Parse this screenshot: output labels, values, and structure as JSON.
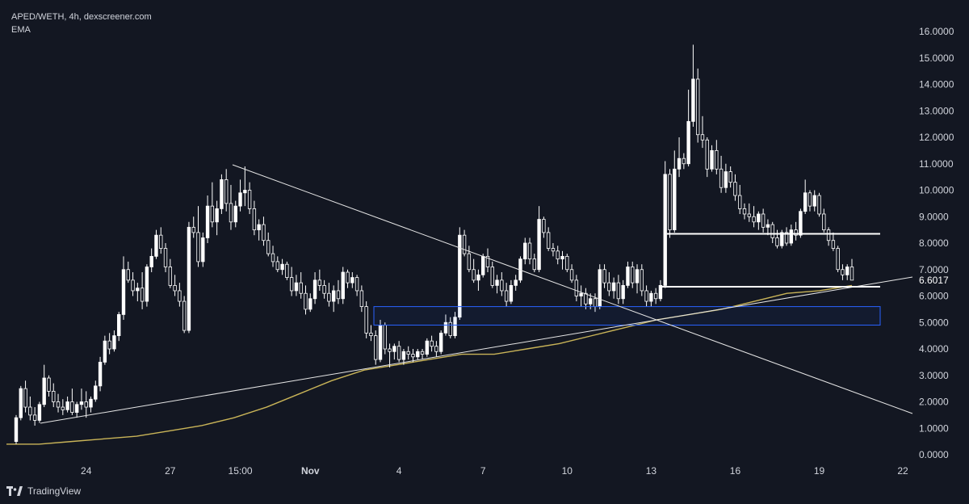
{
  "header": {
    "symbol_line": "APED/WETH, 4h, dexscreener.com",
    "indicator": "EMA"
  },
  "footer": {
    "brand": "TradingView"
  },
  "colors": {
    "background": "#131722",
    "candle_up": "#ffffff",
    "candle_down": "#131722",
    "candle_border": "#ffffff",
    "ema": "#c9b458",
    "trendline": "#e6e6e6",
    "zone_border": "#2962ff",
    "level": "#ffffff"
  },
  "chart_data": {
    "type": "candlestick",
    "interval": "4h",
    "x_ticks": [
      "24",
      "27",
      "15:00",
      "Nov",
      "4",
      "7",
      "10",
      "13",
      "16",
      "19",
      "22"
    ],
    "y_ticks": [
      "16.0000",
      "15.0000",
      "14.0000",
      "13.0000",
      "12.0000",
      "11.0000",
      "10.0000",
      "9.0000",
      "8.0000",
      "7.0000",
      "6.0000",
      "5.0000",
      "4.0000",
      "3.0000",
      "2.0000",
      "1.0000",
      "0.0000"
    ],
    "ylim": [
      0,
      16
    ],
    "last_price": "6.6017",
    "candles": [
      {
        "o": 0.5,
        "h": 1.5,
        "l": 0.4,
        "c": 1.4
      },
      {
        "o": 1.4,
        "h": 2.6,
        "l": 1.3,
        "c": 2.5
      },
      {
        "o": 2.5,
        "h": 2.8,
        "l": 1.6,
        "c": 1.8
      },
      {
        "o": 1.8,
        "h": 2.2,
        "l": 1.3,
        "c": 1.5
      },
      {
        "o": 1.5,
        "h": 1.8,
        "l": 1.1,
        "c": 1.3
      },
      {
        "o": 1.3,
        "h": 2.0,
        "l": 1.2,
        "c": 1.9
      },
      {
        "o": 1.9,
        "h": 3.4,
        "l": 1.8,
        "c": 2.9
      },
      {
        "o": 2.9,
        "h": 3.0,
        "l": 2.2,
        "c": 2.4
      },
      {
        "o": 2.4,
        "h": 2.7,
        "l": 1.8,
        "c": 2.0
      },
      {
        "o": 2.0,
        "h": 2.3,
        "l": 1.6,
        "c": 1.8
      },
      {
        "o": 1.8,
        "h": 2.1,
        "l": 1.5,
        "c": 1.7
      },
      {
        "o": 1.7,
        "h": 2.2,
        "l": 1.6,
        "c": 2.0
      },
      {
        "o": 2.0,
        "h": 2.5,
        "l": 1.5,
        "c": 1.6
      },
      {
        "o": 1.6,
        "h": 2.0,
        "l": 1.4,
        "c": 1.9
      },
      {
        "o": 1.9,
        "h": 2.5,
        "l": 1.7,
        "c": 2.0
      },
      {
        "o": 2.0,
        "h": 2.4,
        "l": 1.4,
        "c": 1.8
      },
      {
        "o": 1.8,
        "h": 2.2,
        "l": 1.6,
        "c": 2.1
      },
      {
        "o": 2.1,
        "h": 2.8,
        "l": 2.0,
        "c": 2.6
      },
      {
        "o": 2.6,
        "h": 3.7,
        "l": 2.4,
        "c": 3.5
      },
      {
        "o": 3.5,
        "h": 4.5,
        "l": 3.4,
        "c": 4.3
      },
      {
        "o": 4.3,
        "h": 4.6,
        "l": 3.8,
        "c": 4.0
      },
      {
        "o": 4.0,
        "h": 4.7,
        "l": 3.9,
        "c": 4.5
      },
      {
        "o": 4.5,
        "h": 5.4,
        "l": 4.3,
        "c": 5.3
      },
      {
        "o": 5.3,
        "h": 7.5,
        "l": 5.1,
        "c": 7.0
      },
      {
        "o": 7.0,
        "h": 7.3,
        "l": 6.5,
        "c": 6.6
      },
      {
        "o": 6.6,
        "h": 6.9,
        "l": 6.0,
        "c": 6.2
      },
      {
        "o": 6.2,
        "h": 6.5,
        "l": 5.8,
        "c": 6.3
      },
      {
        "o": 6.3,
        "h": 6.9,
        "l": 5.5,
        "c": 5.8
      },
      {
        "o": 5.8,
        "h": 7.2,
        "l": 5.6,
        "c": 7.1
      },
      {
        "o": 7.1,
        "h": 7.8,
        "l": 6.9,
        "c": 7.5
      },
      {
        "o": 7.5,
        "h": 8.5,
        "l": 7.4,
        "c": 8.3
      },
      {
        "o": 8.3,
        "h": 8.6,
        "l": 7.6,
        "c": 7.8
      },
      {
        "o": 7.8,
        "h": 8.0,
        "l": 6.9,
        "c": 7.1
      },
      {
        "o": 7.1,
        "h": 7.4,
        "l": 6.3,
        "c": 6.4
      },
      {
        "o": 6.4,
        "h": 6.8,
        "l": 6.0,
        "c": 6.2
      },
      {
        "o": 6.2,
        "h": 6.5,
        "l": 5.6,
        "c": 5.8
      },
      {
        "o": 5.8,
        "h": 6.0,
        "l": 4.6,
        "c": 4.7
      },
      {
        "o": 4.7,
        "h": 8.8,
        "l": 4.6,
        "c": 8.6
      },
      {
        "o": 8.6,
        "h": 9.0,
        "l": 8.2,
        "c": 8.4
      },
      {
        "o": 8.4,
        "h": 9.4,
        "l": 7.1,
        "c": 7.3
      },
      {
        "o": 7.3,
        "h": 8.4,
        "l": 7.1,
        "c": 8.2
      },
      {
        "o": 8.2,
        "h": 9.8,
        "l": 8.0,
        "c": 9.4
      },
      {
        "o": 9.4,
        "h": 10.3,
        "l": 8.6,
        "c": 8.8
      },
      {
        "o": 8.8,
        "h": 9.6,
        "l": 8.3,
        "c": 9.3
      },
      {
        "o": 9.3,
        "h": 10.6,
        "l": 9.1,
        "c": 10.4
      },
      {
        "o": 10.4,
        "h": 10.8,
        "l": 9.2,
        "c": 9.5
      },
      {
        "o": 9.5,
        "h": 10.2,
        "l": 8.5,
        "c": 8.8
      },
      {
        "o": 8.8,
        "h": 9.6,
        "l": 8.6,
        "c": 9.4
      },
      {
        "o": 9.4,
        "h": 10.4,
        "l": 9.2,
        "c": 9.9
      },
      {
        "o": 9.9,
        "h": 10.9,
        "l": 9.4,
        "c": 10.0
      },
      {
        "o": 10.0,
        "h": 10.3,
        "l": 9.1,
        "c": 9.3
      },
      {
        "o": 9.3,
        "h": 9.6,
        "l": 8.3,
        "c": 8.5
      },
      {
        "o": 8.5,
        "h": 8.9,
        "l": 8.1,
        "c": 8.7
      },
      {
        "o": 8.7,
        "h": 9.0,
        "l": 7.9,
        "c": 8.1
      },
      {
        "o": 8.1,
        "h": 8.4,
        "l": 7.5,
        "c": 7.6
      },
      {
        "o": 7.6,
        "h": 7.9,
        "l": 7.1,
        "c": 7.3
      },
      {
        "o": 7.3,
        "h": 7.5,
        "l": 6.9,
        "c": 7.0
      },
      {
        "o": 7.0,
        "h": 7.4,
        "l": 6.8,
        "c": 7.2
      },
      {
        "o": 7.2,
        "h": 7.3,
        "l": 6.6,
        "c": 6.7
      },
      {
        "o": 6.7,
        "h": 7.1,
        "l": 6.0,
        "c": 6.2
      },
      {
        "o": 6.2,
        "h": 6.8,
        "l": 6.0,
        "c": 6.5
      },
      {
        "o": 6.5,
        "h": 6.9,
        "l": 5.9,
        "c": 6.1
      },
      {
        "o": 6.1,
        "h": 6.4,
        "l": 5.3,
        "c": 5.5
      },
      {
        "o": 5.5,
        "h": 6.1,
        "l": 5.4,
        "c": 5.9
      },
      {
        "o": 5.9,
        "h": 6.9,
        "l": 5.7,
        "c": 6.6
      },
      {
        "o": 6.6,
        "h": 7.0,
        "l": 6.2,
        "c": 6.4
      },
      {
        "o": 6.4,
        "h": 6.6,
        "l": 5.9,
        "c": 6.1
      },
      {
        "o": 6.1,
        "h": 6.5,
        "l": 5.6,
        "c": 5.8
      },
      {
        "o": 5.8,
        "h": 6.4,
        "l": 5.4,
        "c": 6.2
      },
      {
        "o": 6.2,
        "h": 6.6,
        "l": 5.7,
        "c": 5.9
      },
      {
        "o": 5.9,
        "h": 7.1,
        "l": 5.7,
        "c": 6.9
      },
      {
        "o": 6.9,
        "h": 7.0,
        "l": 6.3,
        "c": 6.5
      },
      {
        "o": 6.5,
        "h": 6.9,
        "l": 6.3,
        "c": 6.7
      },
      {
        "o": 6.7,
        "h": 6.8,
        "l": 6.0,
        "c": 6.2
      },
      {
        "o": 6.2,
        "h": 6.4,
        "l": 5.4,
        "c": 5.6
      },
      {
        "o": 5.6,
        "h": 5.8,
        "l": 4.4,
        "c": 4.6
      },
      {
        "o": 4.6,
        "h": 4.9,
        "l": 4.3,
        "c": 4.5
      },
      {
        "o": 4.5,
        "h": 4.7,
        "l": 3.4,
        "c": 3.6
      },
      {
        "o": 3.6,
        "h": 5.1,
        "l": 3.5,
        "c": 4.9
      },
      {
        "o": 4.9,
        "h": 5.0,
        "l": 3.8,
        "c": 4.0
      },
      {
        "o": 4.0,
        "h": 4.2,
        "l": 3.3,
        "c": 3.9
      },
      {
        "o": 3.9,
        "h": 4.2,
        "l": 3.6,
        "c": 4.1
      },
      {
        "o": 4.1,
        "h": 4.3,
        "l": 3.5,
        "c": 3.6
      },
      {
        "o": 3.6,
        "h": 4.0,
        "l": 3.4,
        "c": 3.9
      },
      {
        "o": 3.9,
        "h": 4.1,
        "l": 3.6,
        "c": 3.8
      },
      {
        "o": 3.8,
        "h": 4.0,
        "l": 3.5,
        "c": 3.7
      },
      {
        "o": 3.7,
        "h": 4.0,
        "l": 3.6,
        "c": 3.9
      },
      {
        "o": 3.9,
        "h": 4.0,
        "l": 3.6,
        "c": 3.8
      },
      {
        "o": 3.8,
        "h": 4.4,
        "l": 3.7,
        "c": 4.3
      },
      {
        "o": 4.3,
        "h": 4.5,
        "l": 3.9,
        "c": 4.1
      },
      {
        "o": 4.1,
        "h": 4.3,
        "l": 3.7,
        "c": 3.9
      },
      {
        "o": 3.9,
        "h": 4.7,
        "l": 3.8,
        "c": 4.6
      },
      {
        "o": 4.6,
        "h": 5.3,
        "l": 4.5,
        "c": 5.0
      },
      {
        "o": 5.0,
        "h": 5.2,
        "l": 4.4,
        "c": 4.5
      },
      {
        "o": 4.5,
        "h": 5.4,
        "l": 4.4,
        "c": 5.2
      },
      {
        "o": 5.2,
        "h": 8.6,
        "l": 5.1,
        "c": 8.3
      },
      {
        "o": 8.3,
        "h": 8.5,
        "l": 7.5,
        "c": 7.6
      },
      {
        "o": 7.6,
        "h": 7.9,
        "l": 6.9,
        "c": 7.0
      },
      {
        "o": 7.0,
        "h": 7.4,
        "l": 6.5,
        "c": 6.6
      },
      {
        "o": 6.6,
        "h": 7.0,
        "l": 6.2,
        "c": 6.8
      },
      {
        "o": 6.8,
        "h": 7.6,
        "l": 6.7,
        "c": 7.5
      },
      {
        "o": 7.5,
        "h": 7.8,
        "l": 6.9,
        "c": 7.1
      },
      {
        "o": 7.1,
        "h": 7.3,
        "l": 6.3,
        "c": 6.4
      },
      {
        "o": 6.4,
        "h": 6.8,
        "l": 6.1,
        "c": 6.6
      },
      {
        "o": 6.6,
        "h": 6.9,
        "l": 6.0,
        "c": 6.2
      },
      {
        "o": 6.2,
        "h": 6.5,
        "l": 5.6,
        "c": 5.8
      },
      {
        "o": 5.8,
        "h": 6.6,
        "l": 5.7,
        "c": 6.4
      },
      {
        "o": 6.4,
        "h": 6.8,
        "l": 6.2,
        "c": 6.6
      },
      {
        "o": 6.6,
        "h": 7.5,
        "l": 6.5,
        "c": 7.4
      },
      {
        "o": 7.4,
        "h": 8.2,
        "l": 7.2,
        "c": 8.0
      },
      {
        "o": 8.0,
        "h": 8.2,
        "l": 7.2,
        "c": 7.4
      },
      {
        "o": 7.4,
        "h": 7.6,
        "l": 6.9,
        "c": 7.0
      },
      {
        "o": 7.0,
        "h": 9.4,
        "l": 6.9,
        "c": 8.9
      },
      {
        "o": 8.9,
        "h": 9.0,
        "l": 8.2,
        "c": 8.4
      },
      {
        "o": 8.4,
        "h": 8.6,
        "l": 7.7,
        "c": 7.8
      },
      {
        "o": 7.8,
        "h": 8.0,
        "l": 7.5,
        "c": 7.7
      },
      {
        "o": 7.7,
        "h": 7.9,
        "l": 7.2,
        "c": 7.4
      },
      {
        "o": 7.4,
        "h": 7.7,
        "l": 7.0,
        "c": 7.5
      },
      {
        "o": 7.5,
        "h": 7.6,
        "l": 6.9,
        "c": 7.0
      },
      {
        "o": 7.0,
        "h": 7.2,
        "l": 6.5,
        "c": 6.6
      },
      {
        "o": 6.6,
        "h": 6.8,
        "l": 5.8,
        "c": 6.0
      },
      {
        "o": 6.0,
        "h": 6.4,
        "l": 5.6,
        "c": 6.1
      },
      {
        "o": 6.1,
        "h": 6.3,
        "l": 5.5,
        "c": 5.7
      },
      {
        "o": 5.7,
        "h": 6.1,
        "l": 5.5,
        "c": 5.9
      },
      {
        "o": 5.9,
        "h": 6.1,
        "l": 5.4,
        "c": 5.6
      },
      {
        "o": 5.6,
        "h": 7.2,
        "l": 5.5,
        "c": 7.0
      },
      {
        "o": 7.0,
        "h": 7.2,
        "l": 6.3,
        "c": 6.5
      },
      {
        "o": 6.5,
        "h": 6.9,
        "l": 6.0,
        "c": 6.2
      },
      {
        "o": 6.2,
        "h": 6.7,
        "l": 5.9,
        "c": 6.5
      },
      {
        "o": 6.5,
        "h": 6.8,
        "l": 5.7,
        "c": 5.9
      },
      {
        "o": 5.9,
        "h": 6.6,
        "l": 5.7,
        "c": 6.4
      },
      {
        "o": 6.4,
        "h": 7.3,
        "l": 6.3,
        "c": 7.1
      },
      {
        "o": 7.1,
        "h": 7.3,
        "l": 6.3,
        "c": 6.5
      },
      {
        "o": 6.5,
        "h": 7.2,
        "l": 6.1,
        "c": 7.0
      },
      {
        "o": 7.0,
        "h": 7.2,
        "l": 6.0,
        "c": 6.2
      },
      {
        "o": 6.2,
        "h": 6.4,
        "l": 5.6,
        "c": 5.8
      },
      {
        "o": 5.8,
        "h": 6.2,
        "l": 5.6,
        "c": 6.1
      },
      {
        "o": 6.1,
        "h": 6.3,
        "l": 5.7,
        "c": 5.9
      },
      {
        "o": 5.9,
        "h": 6.6,
        "l": 5.8,
        "c": 6.4
      },
      {
        "o": 6.4,
        "h": 11.1,
        "l": 6.3,
        "c": 10.6
      },
      {
        "o": 10.6,
        "h": 10.8,
        "l": 8.2,
        "c": 8.5
      },
      {
        "o": 8.5,
        "h": 11.5,
        "l": 8.4,
        "c": 10.8
      },
      {
        "o": 10.8,
        "h": 12.0,
        "l": 10.5,
        "c": 11.2
      },
      {
        "o": 11.2,
        "h": 11.4,
        "l": 10.8,
        "c": 11.0
      },
      {
        "o": 11.0,
        "h": 13.8,
        "l": 10.9,
        "c": 12.6
      },
      {
        "o": 12.6,
        "h": 15.5,
        "l": 12.4,
        "c": 14.2
      },
      {
        "o": 14.2,
        "h": 14.6,
        "l": 11.8,
        "c": 12.1
      },
      {
        "o": 12.1,
        "h": 12.8,
        "l": 11.6,
        "c": 11.9
      },
      {
        "o": 11.9,
        "h": 12.0,
        "l": 10.5,
        "c": 10.8
      },
      {
        "o": 10.8,
        "h": 11.7,
        "l": 10.7,
        "c": 11.5
      },
      {
        "o": 11.5,
        "h": 11.9,
        "l": 10.6,
        "c": 10.8
      },
      {
        "o": 10.8,
        "h": 11.3,
        "l": 9.9,
        "c": 10.1
      },
      {
        "o": 10.1,
        "h": 11.0,
        "l": 9.9,
        "c": 10.7
      },
      {
        "o": 10.7,
        "h": 10.9,
        "l": 10.1,
        "c": 10.3
      },
      {
        "o": 10.3,
        "h": 10.6,
        "l": 9.6,
        "c": 9.8
      },
      {
        "o": 9.8,
        "h": 10.2,
        "l": 9.1,
        "c": 9.3
      },
      {
        "o": 9.3,
        "h": 9.5,
        "l": 8.9,
        "c": 9.1
      },
      {
        "o": 9.1,
        "h": 9.5,
        "l": 8.8,
        "c": 9.0
      },
      {
        "o": 9.0,
        "h": 9.4,
        "l": 8.6,
        "c": 8.8
      },
      {
        "o": 8.8,
        "h": 9.2,
        "l": 8.5,
        "c": 9.1
      },
      {
        "o": 9.1,
        "h": 9.3,
        "l": 8.4,
        "c": 8.6
      },
      {
        "o": 8.6,
        "h": 8.9,
        "l": 8.3,
        "c": 8.7
      },
      {
        "o": 8.7,
        "h": 8.8,
        "l": 8.0,
        "c": 8.2
      },
      {
        "o": 8.2,
        "h": 8.5,
        "l": 7.8,
        "c": 7.9
      },
      {
        "o": 7.9,
        "h": 8.5,
        "l": 7.8,
        "c": 8.4
      },
      {
        "o": 8.4,
        "h": 8.6,
        "l": 7.9,
        "c": 8.0
      },
      {
        "o": 8.0,
        "h": 8.7,
        "l": 7.9,
        "c": 8.5
      },
      {
        "o": 8.5,
        "h": 8.8,
        "l": 8.1,
        "c": 8.3
      },
      {
        "o": 8.3,
        "h": 9.3,
        "l": 8.2,
        "c": 9.2
      },
      {
        "o": 9.2,
        "h": 10.4,
        "l": 9.1,
        "c": 9.9
      },
      {
        "o": 9.9,
        "h": 10.0,
        "l": 9.2,
        "c": 9.4
      },
      {
        "o": 9.4,
        "h": 10.0,
        "l": 9.2,
        "c": 9.8
      },
      {
        "o": 9.8,
        "h": 9.9,
        "l": 9.0,
        "c": 9.1
      },
      {
        "o": 9.1,
        "h": 9.3,
        "l": 8.4,
        "c": 8.5
      },
      {
        "o": 8.5,
        "h": 8.6,
        "l": 7.9,
        "c": 8.1
      },
      {
        "o": 8.1,
        "h": 8.4,
        "l": 7.7,
        "c": 7.8
      },
      {
        "o": 7.8,
        "h": 7.9,
        "l": 6.9,
        "c": 7.0
      },
      {
        "o": 7.0,
        "h": 7.2,
        "l": 6.6,
        "c": 6.8
      },
      {
        "o": 6.8,
        "h": 7.2,
        "l": 6.6,
        "c": 7.1
      },
      {
        "o": 7.1,
        "h": 7.4,
        "l": 6.6,
        "c": 6.6
      }
    ],
    "ema": [
      0.4,
      0.4,
      0.5,
      0.6,
      0.7,
      0.9,
      1.1,
      1.4,
      1.8,
      2.3,
      2.8,
      3.2,
      3.4,
      3.6,
      3.8,
      3.8,
      4.0,
      4.2,
      4.5,
      4.8,
      5.1,
      5.3,
      5.5,
      5.8,
      6.1,
      6.2,
      6.4
    ],
    "horizontal_levels": [
      8.35,
      6.35
    ],
    "demand_zone": {
      "top": 5.6,
      "bottom": 4.9
    }
  }
}
